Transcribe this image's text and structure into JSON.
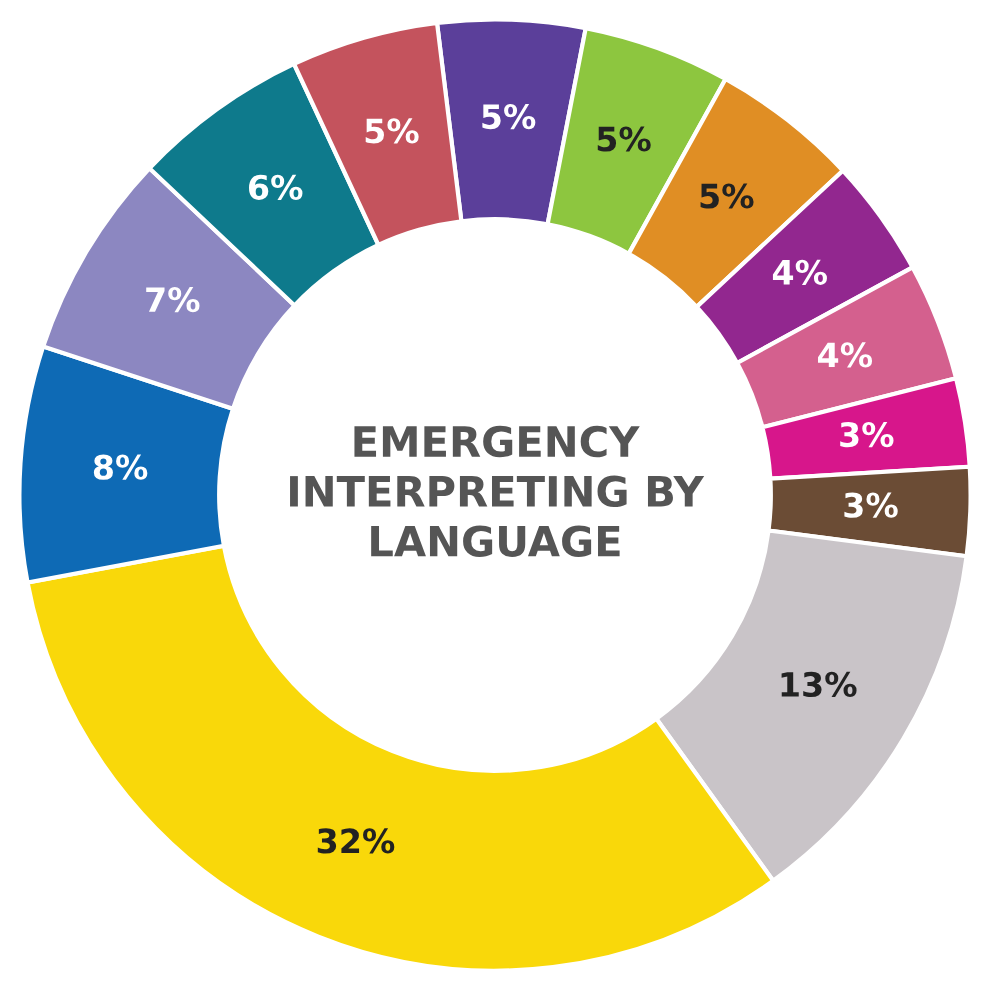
{
  "chart_data": {
    "type": "donut",
    "title": "EMERGENCY\nINTERPRETING BY\nLANGUAGE",
    "categories": [
      null,
      null,
      null,
      null,
      null,
      null,
      null,
      null,
      null,
      null,
      null,
      null,
      null
    ],
    "values": [
      5,
      5,
      5,
      4,
      4,
      3,
      3,
      13,
      32,
      8,
      7,
      6,
      5
    ],
    "value_labels": [
      "5%",
      "5%",
      "5%",
      "4%",
      "4%",
      "3%",
      "3%",
      "13%",
      "32%",
      "8%",
      "7%",
      "6%",
      "5%"
    ],
    "colors": [
      "#5b3f9a",
      "#8dc63f",
      "#e08e24",
      "#92278f",
      "#d4608e",
      "#d7168b",
      "#6b4c35",
      "#c9c4c8",
      "#f9d80a",
      "#0e6ab5",
      "#8c87c1",
      "#0e7a8c",
      "#c4535d"
    ]
  }
}
